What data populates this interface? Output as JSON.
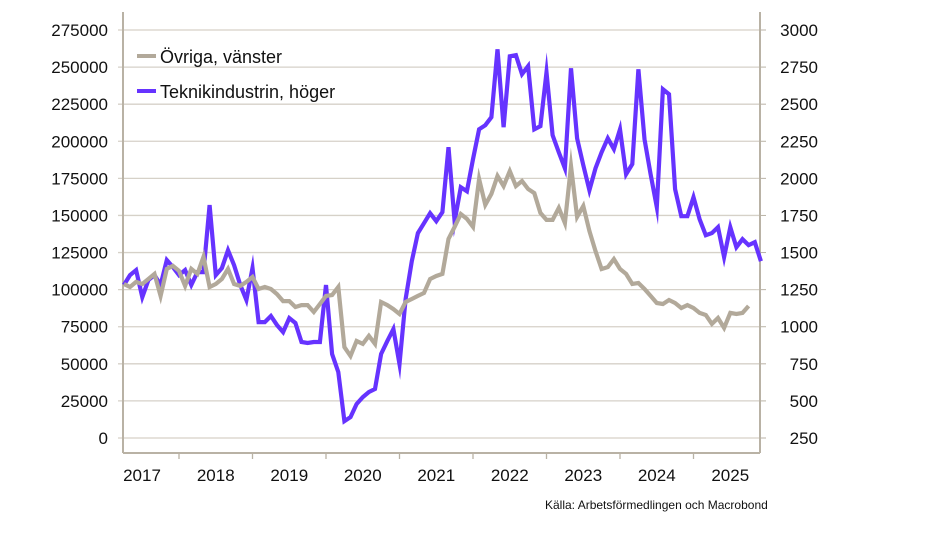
{
  "chart_data": {
    "type": "line",
    "title": "",
    "xlabel": "",
    "ylabel_left": "",
    "ylabel_right": "",
    "x_start": "2017-04",
    "x_frequency": "monthly",
    "x_tick_labels": [
      "2017",
      "2018",
      "2019",
      "2020",
      "2021",
      "2022",
      "2023",
      "2024",
      "2025"
    ],
    "x_range": [
      "2017-01",
      "2025-11"
    ],
    "y_left": {
      "range": [
        0,
        275000
      ],
      "ticks": [
        "0",
        "25000",
        "50000",
        "75000",
        "100000",
        "125000",
        "150000",
        "175000",
        "200000",
        "225000",
        "250000",
        "275000"
      ]
    },
    "y_right": {
      "range": [
        250,
        3000
      ],
      "ticks": [
        "250",
        "500",
        "750",
        "1000",
        "1250",
        "1500",
        "1750",
        "2000",
        "2250",
        "2500",
        "2750",
        "3000"
      ]
    },
    "grid": "horizontal",
    "legend": {
      "placement": "top-left"
    },
    "series": [
      {
        "name": "Övriga, vänster",
        "axis": "left",
        "color": "#b2a99a",
        "values": [
          103800,
          101800,
          105200,
          103800,
          107200,
          110600,
          95800,
          114000,
          116000,
          112600,
          102500,
          114000,
          110600,
          122100,
          101800,
          103800,
          107200,
          114000,
          103800,
          102500,
          105200,
          108500,
          100400,
          101800,
          100400,
          97000,
          92300,
          92300,
          88300,
          89600,
          89600,
          84900,
          90300,
          95800,
          96400,
          101800,
          61300,
          55300,
          65400,
          63400,
          68800,
          63400,
          91700,
          89600,
          86900,
          83600,
          91700,
          93700,
          95800,
          97700,
          107200,
          109200,
          110600,
          134200,
          142300,
          151000,
          147700,
          142300,
          174600,
          157100,
          164500,
          176600,
          169800,
          179900,
          169800,
          173200,
          167800,
          165100,
          151700,
          147000,
          147000,
          155100,
          144900,
          183300,
          149000,
          156400,
          139500,
          126000,
          113900,
          115200,
          120600,
          113900,
          110600,
          103800,
          104500,
          100400,
          95800,
          91000,
          90300,
          93000,
          91000,
          87600,
          89600,
          87600,
          84300,
          82900,
          76900,
          80900,
          74200,
          84300,
          83600,
          84300,
          89000
        ]
      },
      {
        "name": "Teknikindustrin, höger",
        "axis": "right",
        "color": "#6633ff",
        "values": [
          1281,
          1348,
          1382,
          1200,
          1315,
          1348,
          1281,
          1449,
          1402,
          1348,
          1382,
          1281,
          1368,
          1368,
          1820,
          1348,
          1395,
          1516,
          1415,
          1281,
          1180,
          1395,
          1031,
          1031,
          1072,
          1011,
          964,
          1058,
          1025,
          897,
          890,
          897,
          897,
          1281,
          816,
          694,
          364,
          391,
          479,
          526,
          560,
          580,
          816,
          903,
          984,
          748,
          1186,
          1442,
          1631,
          1698,
          1765,
          1711,
          1772,
          2210,
          1711,
          1940,
          1913,
          2129,
          2331,
          2358,
          2412,
          2870,
          2345,
          2823,
          2830,
          2702,
          2756,
          2331,
          2352,
          2715,
          2291,
          2176,
          2068,
          2742,
          2270,
          2089,
          1920,
          2068,
          2176,
          2270,
          2197,
          2331,
          2028,
          2096,
          2735,
          2264,
          2028,
          1806,
          2601,
          2567,
          1927,
          1745,
          1745,
          1873,
          1725,
          1617,
          1631,
          1671,
          1469,
          1671,
          1536,
          1590,
          1550,
          1570,
          1442
        ]
      }
    ],
    "source": "Källa: Arbetsförmedlingen och Macrobond"
  }
}
